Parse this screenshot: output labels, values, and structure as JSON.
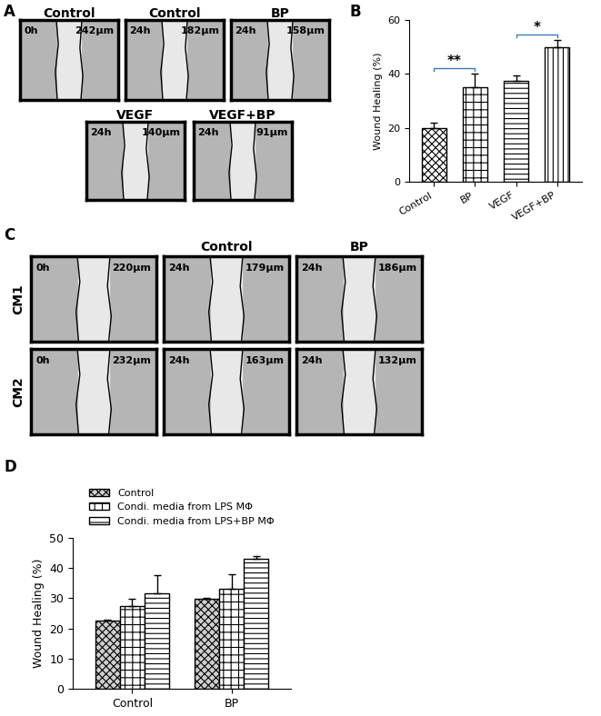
{
  "panel_labels": [
    "A",
    "B",
    "C",
    "D"
  ],
  "image_panels": {
    "A": [
      [
        {
          "title": "Control",
          "time": "0h",
          "width": "242µm"
        },
        {
          "title": "Control",
          "time": "24h",
          "width": "182µm"
        },
        {
          "title": "BP",
          "time": "24h",
          "width": "158µm"
        }
      ],
      [
        {
          "title": "VEGF",
          "time": "24h",
          "width": "140µm"
        },
        {
          "title": "VEGF+BP",
          "time": "24h",
          "width": "91µm"
        }
      ]
    ],
    "C": {
      "column_titles": [
        null,
        "Control",
        "BP"
      ],
      "rows": [
        {
          "label": "CM1",
          "images": [
            {
              "time": "0h",
              "width": "220µm"
            },
            {
              "time": "24h",
              "width": "179µm"
            },
            {
              "time": "24h",
              "width": "186µm"
            }
          ]
        },
        {
          "label": "CM2",
          "images": [
            {
              "time": "0h",
              "width": "232µm"
            },
            {
              "time": "24h",
              "width": "163µm"
            },
            {
              "time": "24h",
              "width": "132µm"
            }
          ]
        }
      ]
    }
  },
  "chart_data": [
    {
      "type": "bar",
      "y_label": "Wound Healing (%)",
      "categories": [
        "Control",
        "BP",
        "VEGF",
        "VEGF+BP"
      ],
      "values": [
        20,
        35,
        37.5,
        50
      ],
      "errors": [
        1.8,
        5,
        2,
        2.5
      ],
      "ylim": [
        0,
        60
      ],
      "yticks": [
        0,
        20,
        40,
        60
      ],
      "annotations": [
        {
          "text": "**",
          "from": "Control",
          "to": "BP"
        },
        {
          "text": "*",
          "from": "VEGF",
          "to": "VEGF+BP"
        }
      ]
    },
    {
      "type": "grouped_bar",
      "y_label": "Wound Healing (%)",
      "categories": [
        "Control",
        "BP"
      ],
      "series": [
        {
          "name": "Control",
          "color": "#cfcfcf",
          "values": [
            22.5,
            29.8
          ],
          "errors": [
            0.5,
            0.2
          ]
        },
        {
          "name": "Condi. media from LPS MΦ",
          "color": "#ffffff",
          "values": [
            27.5,
            33
          ],
          "errors": [
            2.3,
            5
          ]
        },
        {
          "name": "Condi. media from LPS+BP MΦ",
          "color": "#ffffff",
          "values": [
            31.7,
            43
          ],
          "errors": [
            6,
            1
          ]
        }
      ],
      "ylim": [
        0,
        50
      ],
      "yticks": [
        0,
        10,
        20,
        30,
        40,
        50
      ],
      "legend": "top"
    }
  ]
}
